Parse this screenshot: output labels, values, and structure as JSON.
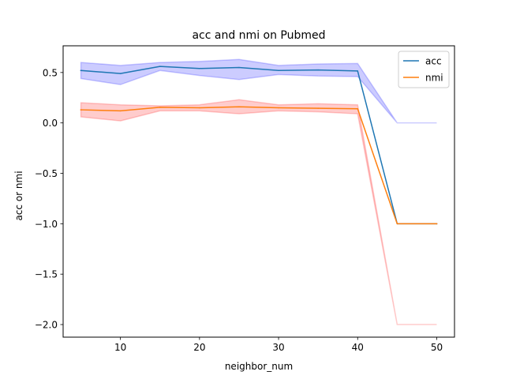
{
  "chart_data": {
    "type": "line",
    "title": "acc and nmi on Pubmed",
    "xlabel": "neighbor_num",
    "ylabel": "acc or nmi",
    "x": [
      5,
      10,
      15,
      20,
      25,
      30,
      35,
      40,
      45,
      50
    ],
    "xlim": [
      2.75,
      52.25
    ],
    "ylim": [
      -2.125,
      0.765
    ],
    "xticks": [
      10,
      20,
      30,
      40,
      50
    ],
    "yticks": [
      0.5,
      0.0,
      -0.5,
      -1.0,
      -1.5,
      -2.0
    ],
    "ytick_labels": [
      "0.5",
      "0.0",
      "−0.5",
      "−1.0",
      "−1.5",
      "−2.0"
    ],
    "grid": false,
    "legend_position": "top-right",
    "series": [
      {
        "name": "acc",
        "color": "#1f77b4",
        "band_color": "#0000ff",
        "values": [
          0.52,
          0.49,
          0.56,
          0.54,
          0.55,
          0.52,
          0.525,
          0.515,
          -1.0,
          -1.0
        ],
        "upper": [
          0.6,
          0.57,
          0.6,
          0.61,
          0.63,
          0.57,
          0.585,
          0.59,
          0.0,
          0.0
        ],
        "lower": [
          0.44,
          0.38,
          0.52,
          0.47,
          0.43,
          0.48,
          0.465,
          0.46,
          0.0,
          0.0
        ]
      },
      {
        "name": "nmi",
        "color": "#ff7f0e",
        "band_color": "#ff0000",
        "values": [
          0.13,
          0.12,
          0.155,
          0.15,
          0.16,
          0.15,
          0.145,
          0.14,
          -1.0,
          -1.0
        ],
        "upper": [
          0.2,
          0.18,
          0.17,
          0.18,
          0.23,
          0.18,
          0.19,
          0.18,
          -2.0,
          -2.0
        ],
        "lower": [
          0.06,
          0.02,
          0.12,
          0.12,
          0.09,
          0.12,
          0.11,
          0.09,
          -2.0,
          -2.0
        ]
      }
    ]
  }
}
